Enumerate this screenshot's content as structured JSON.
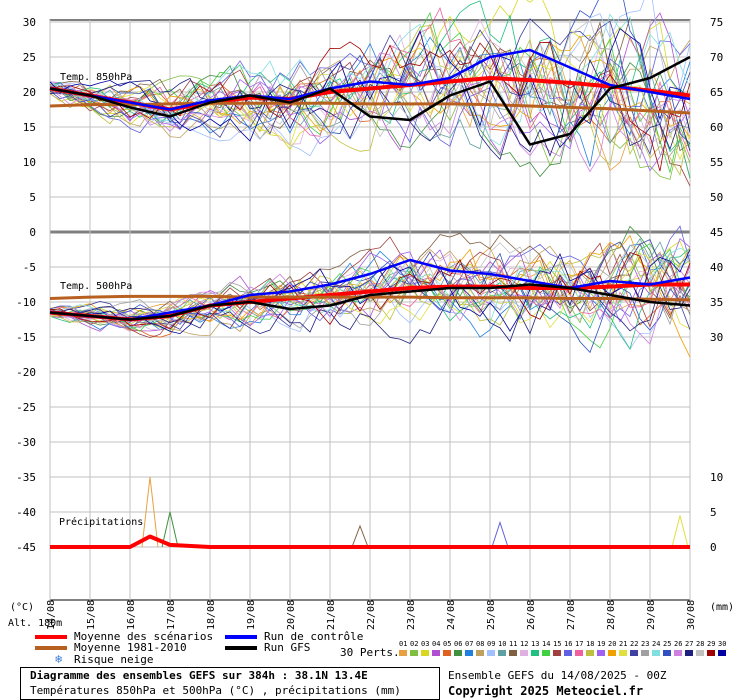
{
  "chart_data": {
    "type": "line",
    "title": "Diagramme des ensembles GEFS sur 384h : 38.1N 13.4E",
    "subtitle": "Températures 850hPa et 500hPa (°C) , précipitations (mm)",
    "left_axis": {
      "unit_label": "(°C)",
      "ticks": [
        30,
        25,
        20,
        15,
        10,
        5,
        0,
        -5,
        -10,
        -15,
        -20,
        -25,
        -30,
        -35,
        -40,
        -45
      ],
      "ylim": [
        -45,
        30
      ]
    },
    "right_axis": {
      "unit_label": "(mm)",
      "ticks_upper": [
        75,
        70,
        65,
        60,
        55,
        50,
        45
      ],
      "ticks_middle": [
        40,
        35,
        30
      ],
      "ticks_lower": [
        10,
        5,
        0
      ]
    },
    "x_ticks": [
      "14/08",
      "15/08",
      "16/08",
      "17/08",
      "18/08",
      "19/08",
      "20/08",
      "21/08",
      "22/08",
      "23/08",
      "24/08",
      "25/08",
      "26/08",
      "27/08",
      "28/08",
      "29/08",
      "30/08"
    ],
    "altitude_label": "Alt. 180m",
    "panel_labels": {
      "t850": "Temp. 850hPa",
      "t500": "Temp. 500hPa",
      "precip": "Précipitations"
    },
    "series": [
      {
        "name": "Moyenne des scénarios",
        "color": "#ff0000",
        "panel": "t850",
        "x": [
          "14/08",
          "15/08",
          "16/08",
          "17/08",
          "18/08",
          "19/08",
          "20/08",
          "21/08",
          "22/08",
          "23/08",
          "24/08",
          "25/08",
          "26/08",
          "27/08",
          "28/08",
          "29/08",
          "30/08"
        ],
        "y": [
          20.5,
          19.5,
          18.5,
          17.5,
          18.5,
          19.2,
          19.0,
          20.0,
          20.5,
          21.0,
          21.5,
          22.0,
          21.7,
          21.3,
          20.8,
          20.2,
          19.5
        ]
      },
      {
        "name": "Moyenne 1981-2010",
        "color": "#b86020",
        "panel": "t850",
        "x": [
          "14/08",
          "15/08",
          "16/08",
          "17/08",
          "18/08",
          "19/08",
          "20/08",
          "21/08",
          "22/08",
          "23/08",
          "24/08",
          "25/08",
          "26/08",
          "27/08",
          "28/08",
          "29/08",
          "30/08"
        ],
        "y": [
          18.0,
          18.2,
          18.2,
          18.3,
          18.4,
          18.4,
          18.4,
          18.4,
          18.3,
          18.3,
          18.3,
          18.2,
          18.0,
          17.8,
          17.6,
          17.3,
          17.0
        ]
      },
      {
        "name": "Run de contrôle",
        "color": "#0000ff",
        "panel": "t850",
        "x": [
          "14/08",
          "15/08",
          "16/08",
          "17/08",
          "18/08",
          "19/08",
          "20/08",
          "21/08",
          "22/08",
          "23/08",
          "24/08",
          "25/08",
          "26/08",
          "27/08",
          "28/08",
          "29/08",
          "30/08"
        ],
        "y": [
          20.5,
          19.5,
          18.5,
          17.5,
          18.8,
          19.5,
          19.0,
          20.5,
          21.5,
          21.0,
          22.0,
          25.0,
          26.0,
          23.5,
          21.0,
          20.0,
          19.0
        ]
      },
      {
        "name": "Run GFS",
        "color": "#000000",
        "panel": "t850",
        "x": [
          "14/08",
          "15/08",
          "16/08",
          "17/08",
          "18/08",
          "19/08",
          "20/08",
          "21/08",
          "22/08",
          "23/08",
          "24/08",
          "25/08",
          "26/08",
          "27/08",
          "28/08",
          "29/08",
          "30/08"
        ],
        "y": [
          20.5,
          19.5,
          17.8,
          16.5,
          18.5,
          19.5,
          18.5,
          20.5,
          16.5,
          16.0,
          19.5,
          21.5,
          12.5,
          14.0,
          20.5,
          22.0,
          25.0
        ]
      },
      {
        "name": "Moyenne des scénarios",
        "color": "#ff0000",
        "panel": "t500",
        "x": [
          "14/08",
          "15/08",
          "16/08",
          "17/08",
          "18/08",
          "19/08",
          "20/08",
          "21/08",
          "22/08",
          "23/08",
          "24/08",
          "25/08",
          "26/08",
          "27/08",
          "28/08",
          "29/08",
          "30/08"
        ],
        "y": [
          -11.5,
          -12.0,
          -12.5,
          -12.0,
          -10.5,
          -10.0,
          -9.5,
          -9.0,
          -8.5,
          -8.0,
          -7.8,
          -7.8,
          -8.0,
          -8.0,
          -7.8,
          -7.5,
          -7.5
        ]
      },
      {
        "name": "Moyenne 1981-2010",
        "color": "#b86020",
        "panel": "t500",
        "x": [
          "14/08",
          "15/08",
          "16/08",
          "17/08",
          "18/08",
          "19/08",
          "20/08",
          "21/08",
          "22/08",
          "23/08",
          "24/08",
          "25/08",
          "26/08",
          "27/08",
          "28/08",
          "29/08",
          "30/08"
        ],
        "y": [
          -9.5,
          -9.3,
          -9.2,
          -9.2,
          -9.2,
          -9.3,
          -9.3,
          -9.3,
          -9.3,
          -9.3,
          -9.4,
          -9.4,
          -9.4,
          -9.5,
          -9.5,
          -9.6,
          -9.7
        ]
      },
      {
        "name": "Run de contrôle",
        "color": "#0000ff",
        "panel": "t500",
        "x": [
          "14/08",
          "15/08",
          "16/08",
          "17/08",
          "18/08",
          "19/08",
          "20/08",
          "21/08",
          "22/08",
          "23/08",
          "24/08",
          "25/08",
          "26/08",
          "27/08",
          "28/08",
          "29/08",
          "30/08"
        ],
        "y": [
          -11.5,
          -12.0,
          -12.5,
          -11.5,
          -10.5,
          -9.0,
          -8.5,
          -7.5,
          -6.0,
          -4.0,
          -5.5,
          -6.0,
          -7.0,
          -8.0,
          -7.0,
          -7.5,
          -6.5
        ]
      },
      {
        "name": "Run GFS",
        "color": "#000000",
        "panel": "t500",
        "x": [
          "14/08",
          "15/08",
          "16/08",
          "17/08",
          "18/08",
          "19/08",
          "20/08",
          "21/08",
          "22/08",
          "23/08",
          "24/08",
          "25/08",
          "26/08",
          "27/08",
          "28/08",
          "29/08",
          "30/08"
        ],
        "y": [
          -11.5,
          -12.0,
          -12.5,
          -12.0,
          -10.5,
          -10.0,
          -11.0,
          -10.5,
          -9.0,
          -8.5,
          -8.0,
          -8.0,
          -7.5,
          -8.0,
          -9.0,
          -10.0,
          -10.5
        ]
      },
      {
        "name": "Moyenne des scénarios",
        "color": "#ff0000",
        "panel": "precip",
        "x": [
          "14/08",
          "15/08",
          "16/08",
          "16/12",
          "17/08",
          "18/08",
          "19/08",
          "20/08",
          "21/08",
          "22/08",
          "23/08",
          "24/08",
          "25/08",
          "26/08",
          "27/08",
          "28/08",
          "29/08",
          "30/08"
        ],
        "y_mm": [
          0,
          0,
          0,
          1.5,
          0.3,
          0,
          0,
          0,
          0,
          0,
          0,
          0,
          0,
          0,
          0,
          0,
          0,
          0
        ]
      }
    ],
    "precip_peaks_mm": [
      {
        "x": "16/12",
        "y_mm": 10
      },
      {
        "x": "17/00",
        "y_mm": 5
      },
      {
        "x": "21/18",
        "y_mm": 3
      },
      {
        "x": "25/06",
        "y_mm": 3.5
      },
      {
        "x": "29/18",
        "y_mm": 4.5
      }
    ],
    "snow_risk_label": "Risque neige",
    "perturbations": {
      "label": "30 Perts.",
      "numbers": [
        "01",
        "02",
        "03",
        "04",
        "05",
        "06",
        "07",
        "08",
        "09",
        "10",
        "11",
        "12",
        "13",
        "14",
        "15",
        "16",
        "17",
        "18",
        "19",
        "20",
        "21",
        "22",
        "23",
        "24",
        "25",
        "26",
        "27",
        "28",
        "29",
        "30"
      ],
      "colors": [
        "#e8a040",
        "#80c040",
        "#d8d820",
        "#b050d0",
        "#e06020",
        "#409040",
        "#2080e0",
        "#c0a060",
        "#a0c0ff",
        "#60a0a0",
        "#806040",
        "#e0b0e0",
        "#20c080",
        "#40d040",
        "#a04040",
        "#6060e0",
        "#f060a0",
        "#c0c040",
        "#a060f0",
        "#f0a000",
        "#e0e040",
        "#4040a0",
        "#a0a0a0",
        "#80e0e0",
        "#3050c0",
        "#d080e0",
        "#202080",
        "#c0c0c0",
        "#a00000",
        "#0000a0"
      ]
    },
    "grid": true,
    "legend": "bottom-left"
  },
  "legend": {
    "moyenne_scenarios": "Moyenne des scénarios",
    "moyenne_1981": "Moyenne 1981-2010",
    "run_controle": "Run de contrôle",
    "run_gfs": "Run GFS",
    "colors": {
      "moyenne": "#ff0000",
      "climat": "#b86020",
      "controle": "#0000ff",
      "gfs": "#000000"
    }
  },
  "footer": {
    "title": "Diagramme des ensembles GEFS sur 384h : 38.1N 13.4E",
    "subtitle": "Températures 850hPa et 500hPa (°C) , précipitations (mm)",
    "run_info": "Ensemble GEFS du 14/08/2025 - 00Z",
    "copyright": "Copyright 2025 Meteociel.fr"
  }
}
